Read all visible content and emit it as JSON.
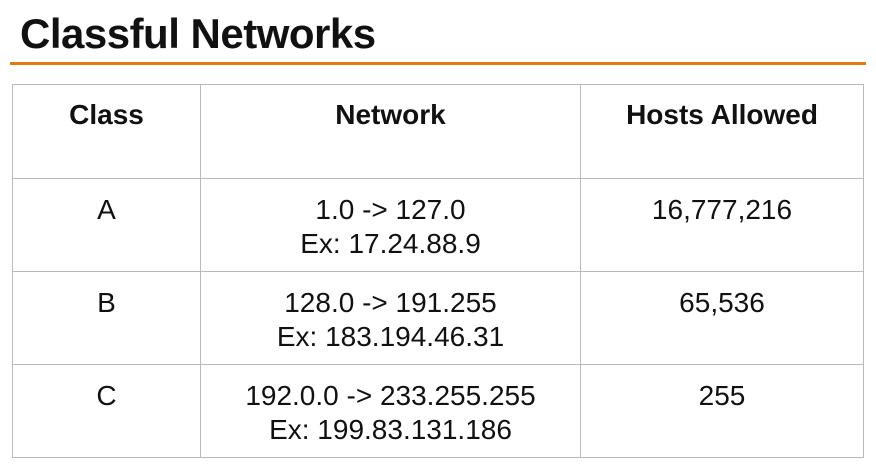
{
  "slide": {
    "title": "Classful Networks"
  },
  "table": {
    "headers": [
      "Class",
      "Network",
      "Hosts Allowed"
    ],
    "rows": [
      {
        "class": "A",
        "range": "1.0 -> 127.0",
        "example": "Ex: 17.24.88.9",
        "hosts": "16,777,216"
      },
      {
        "class": "B",
        "range": "128.0 -> 191.255",
        "example": "Ex: 183.194.46.31",
        "hosts": "65,536"
      },
      {
        "class": "C",
        "range": "192.0.0 -> 233.255.255",
        "example": "Ex: 199.83.131.186",
        "hosts": "255"
      }
    ]
  },
  "colors": {
    "accent_rule": "#e07b12",
    "text": "#111111",
    "grid": "#b9b9b9"
  }
}
